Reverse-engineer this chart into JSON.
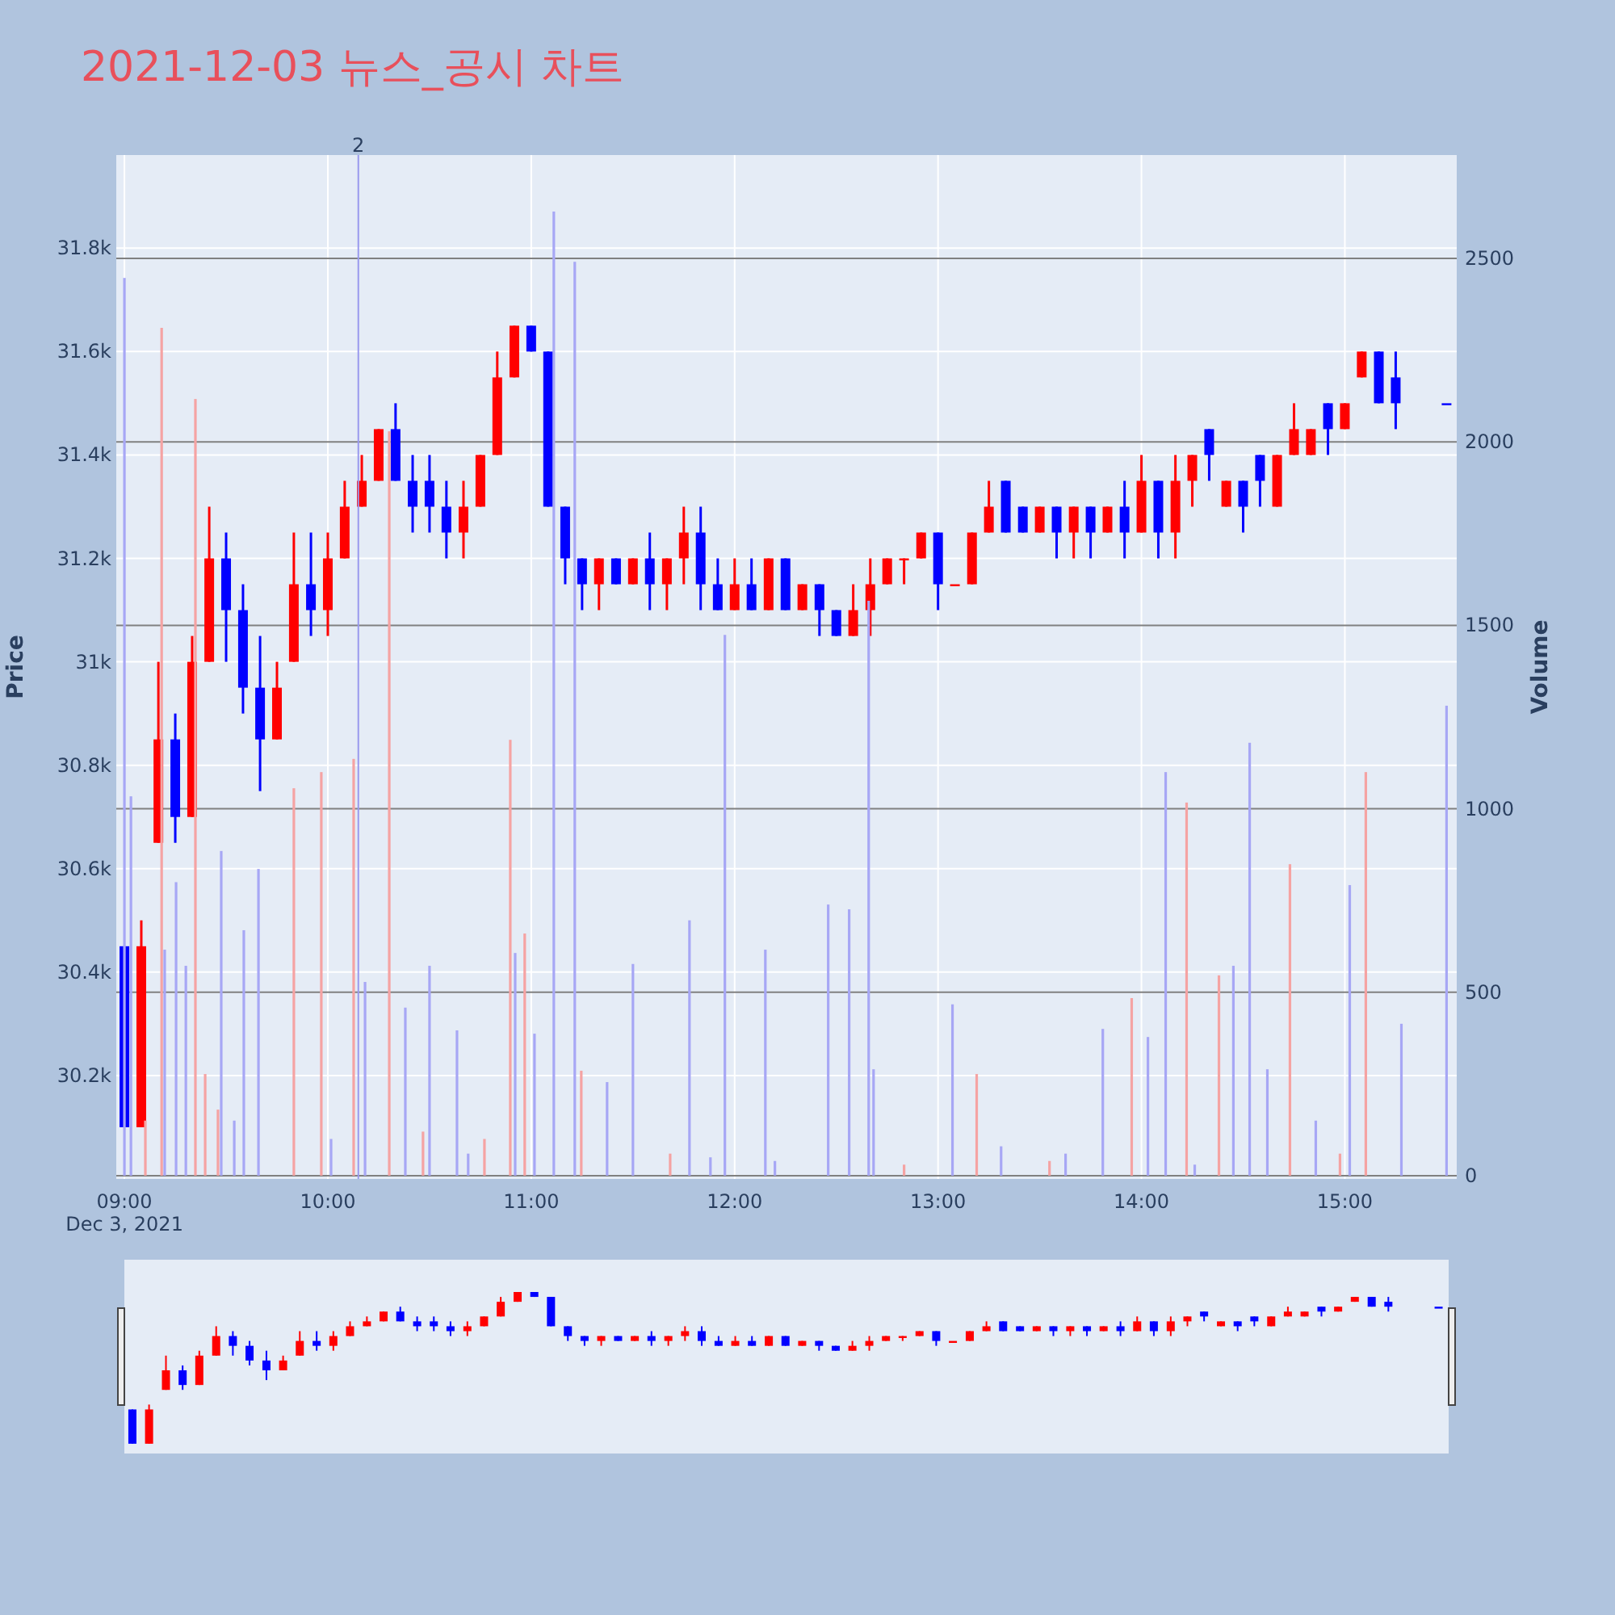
{
  "chart_data": {
    "type": "candlestick",
    "title": "2021-12-03 뉴스_공시 차트",
    "ylabel": "Price",
    "y2label": "Volume",
    "xlim": [
      8.96,
      15.55
    ],
    "xticks": [
      {
        "value": 9,
        "label": "09:00"
      },
      {
        "value": 10,
        "label": "10:00"
      },
      {
        "value": 11,
        "label": "11:00"
      },
      {
        "value": 12,
        "label": "12:00"
      },
      {
        "value": 13,
        "label": "13:00"
      },
      {
        "value": 14,
        "label": "14:00"
      },
      {
        "value": 15,
        "label": "15:00"
      }
    ],
    "ylim": [
      30000,
      31980
    ],
    "yticks": [
      {
        "value": 30200,
        "label": "30.2k"
      },
      {
        "value": 30400,
        "label": "30.4k"
      },
      {
        "value": 30600,
        "label": "30.6k"
      },
      {
        "value": 30800,
        "label": "30.8k"
      },
      {
        "value": 31000,
        "label": "31k"
      },
      {
        "value": 31200,
        "label": "31.2k"
      },
      {
        "value": 31400,
        "label": "31.4k"
      },
      {
        "value": 31600,
        "label": "31.6k"
      },
      {
        "value": 31800,
        "label": "31.8k"
      }
    ],
    "y2lim": [
      -9,
      2782
    ],
    "y2ticks": [
      0,
      500,
      1000,
      1500,
      2000,
      2500
    ],
    "grid": true,
    "annotations": [
      "Dec 3, 2021",
      {
        "text": "2",
        "x": 10.15,
        "y": 31980
      }
    ],
    "ref_lines": [
      {
        "axis": "x",
        "value": 10.15,
        "color": "#9999ee"
      }
    ],
    "series": [
      {
        "type": "bar",
        "axis": "y2",
        "color": "#f5a3a3",
        "x": [
          9.103,
          9.183,
          9.349,
          9.397,
          9.46,
          9.833,
          9.968,
          10.127,
          10.302,
          10.468,
          10.77,
          10.897,
          10.968,
          11.246,
          11.683,
          12.833,
          13.19,
          13.548,
          13.952,
          14.222,
          14.381,
          14.73,
          14.976,
          15.103
        ],
        "values": [
          150,
          2311,
          2117,
          277,
          180,
          1056,
          1100,
          1136,
          2029,
          120,
          100,
          1188,
          660,
          286,
          60,
          30,
          277,
          40,
          484,
          1017,
          546,
          849,
          60,
          1100
        ]
      },
      {
        "type": "bar",
        "axis": "y2",
        "color": "#a7a7f5",
        "x": [
          9.0,
          9.032,
          9.198,
          9.254,
          9.302,
          9.476,
          9.54,
          9.587,
          9.659,
          10.016,
          10.183,
          10.381,
          10.5,
          10.635,
          10.69,
          10.921,
          11.016,
          11.111,
          11.214,
          11.373,
          11.5,
          11.778,
          11.881,
          11.952,
          12.151,
          12.198,
          12.46,
          12.563,
          12.659,
          12.683,
          13.071,
          13.31,
          13.627,
          13.81,
          14.032,
          14.119,
          14.262,
          14.452,
          14.532,
          14.619,
          14.857,
          15.024,
          15.278,
          15.5
        ],
        "values": [
          2447,
          1034,
          616,
          800,
          572,
          885,
          150,
          669,
          836,
          100,
          528,
          458,
          572,
          396,
          60,
          607,
          387,
          2628,
          2491,
          255,
          577,
          696,
          50,
          1474,
          616,
          40,
          739,
          726,
          1567,
          290,
          467,
          80,
          60,
          400,
          378,
          1100,
          30,
          572,
          1180,
          290,
          150,
          792,
          414,
          1281
        ]
      },
      {
        "type": "candlestick",
        "color": "#ff0000",
        "x": [
          9.083,
          9.167,
          9.333,
          9.417,
          9.75,
          9.833,
          10.0,
          10.083,
          10.167,
          10.25,
          10.667,
          10.75,
          10.833,
          10.917,
          11.333,
          11.5,
          11.667,
          11.75,
          12.0,
          12.167,
          12.333,
          12.583,
          12.667,
          12.75,
          12.833,
          12.917,
          13.083,
          13.167,
          13.25,
          13.5,
          13.667,
          13.833,
          14.0,
          14.167,
          14.25,
          14.417,
          14.667,
          14.75,
          14.833,
          15.0,
          15.083
        ],
        "ohlc": [
          [
            30100,
            30500,
            30100,
            30450
          ],
          [
            30650,
            31000,
            30650,
            30850
          ],
          [
            30700,
            31050,
            30700,
            31000
          ],
          [
            31000,
            31300,
            31000,
            31200
          ],
          [
            30850,
            31000,
            30850,
            30950
          ],
          [
            31000,
            31250,
            31000,
            31150
          ],
          [
            31100,
            31250,
            31050,
            31200
          ],
          [
            31200,
            31350,
            31200,
            31300
          ],
          [
            31300,
            31400,
            31300,
            31350
          ],
          [
            31350,
            31450,
            31350,
            31450
          ],
          [
            31250,
            31350,
            31200,
            31300
          ],
          [
            31300,
            31400,
            31300,
            31400
          ],
          [
            31400,
            31600,
            31400,
            31550
          ],
          [
            31550,
            31650,
            31550,
            31650
          ],
          [
            31150,
            31200,
            31100,
            31200
          ],
          [
            31150,
            31200,
            31150,
            31200
          ],
          [
            31150,
            31200,
            31100,
            31200
          ],
          [
            31200,
            31300,
            31150,
            31250
          ],
          [
            31100,
            31200,
            31100,
            31150
          ],
          [
            31100,
            31200,
            31100,
            31200
          ],
          [
            31100,
            31150,
            31100,
            31150
          ],
          [
            31050,
            31150,
            31050,
            31100
          ],
          [
            31100,
            31200,
            31050,
            31150
          ],
          [
            31150,
            31200,
            31150,
            31200
          ],
          [
            31200,
            31200,
            31150,
            31200
          ],
          [
            31200,
            31250,
            31200,
            31250
          ],
          [
            31150,
            31150,
            31150,
            31150
          ],
          [
            31150,
            31250,
            31150,
            31250
          ],
          [
            31250,
            31350,
            31250,
            31300
          ],
          [
            31250,
            31300,
            31250,
            31300
          ],
          [
            31250,
            31300,
            31200,
            31300
          ],
          [
            31250,
            31300,
            31250,
            31300
          ],
          [
            31250,
            31400,
            31250,
            31350
          ],
          [
            31250,
            31400,
            31200,
            31350
          ],
          [
            31350,
            31400,
            31300,
            31400
          ],
          [
            31300,
            31350,
            31300,
            31350
          ],
          [
            31300,
            31400,
            31300,
            31400
          ],
          [
            31400,
            31500,
            31400,
            31450
          ],
          [
            31400,
            31450,
            31400,
            31450
          ],
          [
            31450,
            31500,
            31450,
            31500
          ],
          [
            31550,
            31600,
            31550,
            31600
          ]
        ]
      },
      {
        "type": "candlestick",
        "color": "#0000ff",
        "x": [
          9.0,
          9.25,
          9.5,
          9.583,
          9.667,
          9.917,
          10.333,
          10.417,
          10.5,
          10.583,
          11.0,
          11.083,
          11.167,
          11.25,
          11.417,
          11.583,
          11.833,
          11.917,
          12.083,
          12.25,
          12.417,
          12.5,
          13.0,
          13.333,
          13.417,
          13.583,
          13.75,
          13.917,
          14.083,
          14.333,
          14.5,
          14.583,
          14.917,
          15.167,
          15.25,
          15.5
        ],
        "ohlc": [
          [
            30450,
            30450,
            30100,
            30100
          ],
          [
            30850,
            30900,
            30650,
            30700
          ],
          [
            31200,
            31250,
            31000,
            31100
          ],
          [
            31100,
            31150,
            30900,
            30950
          ],
          [
            30950,
            31050,
            30750,
            30850
          ],
          [
            31150,
            31250,
            31050,
            31100
          ],
          [
            31450,
            31500,
            31350,
            31350
          ],
          [
            31350,
            31400,
            31250,
            31300
          ],
          [
            31350,
            31400,
            31250,
            31300
          ],
          [
            31300,
            31350,
            31200,
            31250
          ],
          [
            31650,
            31650,
            31600,
            31600
          ],
          [
            31600,
            31600,
            31300,
            31300
          ],
          [
            31300,
            31300,
            31150,
            31200
          ],
          [
            31200,
            31200,
            31100,
            31150
          ],
          [
            31200,
            31200,
            31150,
            31150
          ],
          [
            31200,
            31250,
            31100,
            31150
          ],
          [
            31250,
            31300,
            31100,
            31150
          ],
          [
            31150,
            31200,
            31100,
            31100
          ],
          [
            31150,
            31200,
            31100,
            31100
          ],
          [
            31200,
            31200,
            31100,
            31100
          ],
          [
            31150,
            31150,
            31050,
            31100
          ],
          [
            31100,
            31100,
            31050,
            31050
          ],
          [
            31250,
            31250,
            31100,
            31150
          ],
          [
            31350,
            31350,
            31250,
            31250
          ],
          [
            31300,
            31300,
            31250,
            31250
          ],
          [
            31300,
            31300,
            31200,
            31250
          ],
          [
            31300,
            31300,
            31200,
            31250
          ],
          [
            31300,
            31350,
            31200,
            31250
          ],
          [
            31350,
            31350,
            31200,
            31250
          ],
          [
            31450,
            31450,
            31350,
            31400
          ],
          [
            31350,
            31350,
            31250,
            31300
          ],
          [
            31400,
            31400,
            31300,
            31350
          ],
          [
            31500,
            31500,
            31400,
            31450
          ],
          [
            31600,
            31600,
            31500,
            31500
          ],
          [
            31550,
            31600,
            31450,
            31500
          ],
          [
            31500,
            31500,
            31500,
            31500
          ]
        ]
      }
    ]
  }
}
